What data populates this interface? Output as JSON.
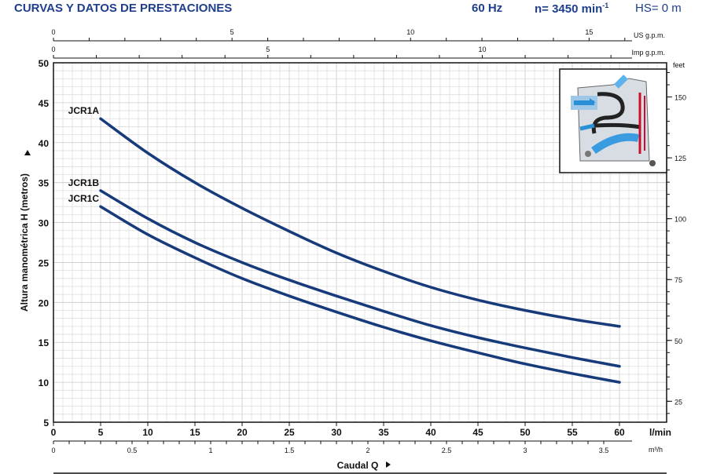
{
  "header": {
    "title": "CURVAS Y DATOS DE PRESTACIONES",
    "freq": "60 Hz",
    "speed": "n= 3450 min",
    "speed_exp": "-1",
    "hs": "HS= 0 m"
  },
  "chart_data": {
    "type": "line",
    "title": "CURVAS Y DATOS DE PRESTACIONES",
    "xlabel": "Caudal Q",
    "ylabel": "Altura manométrica H (metros)",
    "x_unit": "l/min",
    "xlim": [
      0,
      65
    ],
    "ylim": [
      5,
      50
    ],
    "grid": true,
    "x_ticks": [
      0,
      5,
      10,
      15,
      20,
      25,
      30,
      35,
      40,
      45,
      50,
      55,
      60
    ],
    "y_ticks": [
      5,
      10,
      15,
      20,
      25,
      30,
      35,
      40,
      45,
      50
    ],
    "series": [
      {
        "name": "JCR1A",
        "x": [
          5,
          10,
          15,
          20,
          25,
          30,
          35,
          40,
          45,
          50,
          55,
          60
        ],
        "y": [
          43,
          38.7,
          35,
          31.8,
          28.9,
          26.2,
          23.9,
          21.9,
          20.3,
          19,
          17.9,
          17
        ]
      },
      {
        "name": "JCR1B",
        "x": [
          5,
          10,
          15,
          20,
          25,
          30,
          35,
          40,
          45,
          50,
          55,
          60
        ],
        "y": [
          34,
          30.5,
          27.5,
          25,
          22.8,
          20.8,
          18.9,
          17.1,
          15.6,
          14.3,
          13.1,
          12
        ]
      },
      {
        "name": "JCR1C",
        "x": [
          5,
          10,
          15,
          20,
          25,
          30,
          35,
          40,
          45,
          50,
          55,
          60
        ],
        "y": [
          32,
          28.5,
          25.6,
          23,
          20.8,
          18.8,
          16.9,
          15.2,
          13.7,
          12.3,
          11.1,
          10
        ]
      }
    ],
    "top_axes": [
      {
        "unit": "US g.p.m.",
        "ticks": [
          0,
          5,
          10,
          15
        ],
        "per_lmin": 0.26417
      },
      {
        "unit": "Imp g.p.m.",
        "ticks": [
          0,
          5,
          10
        ],
        "per_lmin": 0.21997
      }
    ],
    "bottom_axis": {
      "unit": "m³/h",
      "ticks": [
        "0",
        "0.5",
        "1",
        "1.5",
        "2",
        "2.5",
        "3",
        "3.5"
      ],
      "per_lmin": 0.06
    },
    "right_axis": {
      "unit": "feet",
      "ticks": [
        25,
        50,
        75,
        100,
        125,
        150
      ],
      "per_m": 3.28084
    }
  }
}
